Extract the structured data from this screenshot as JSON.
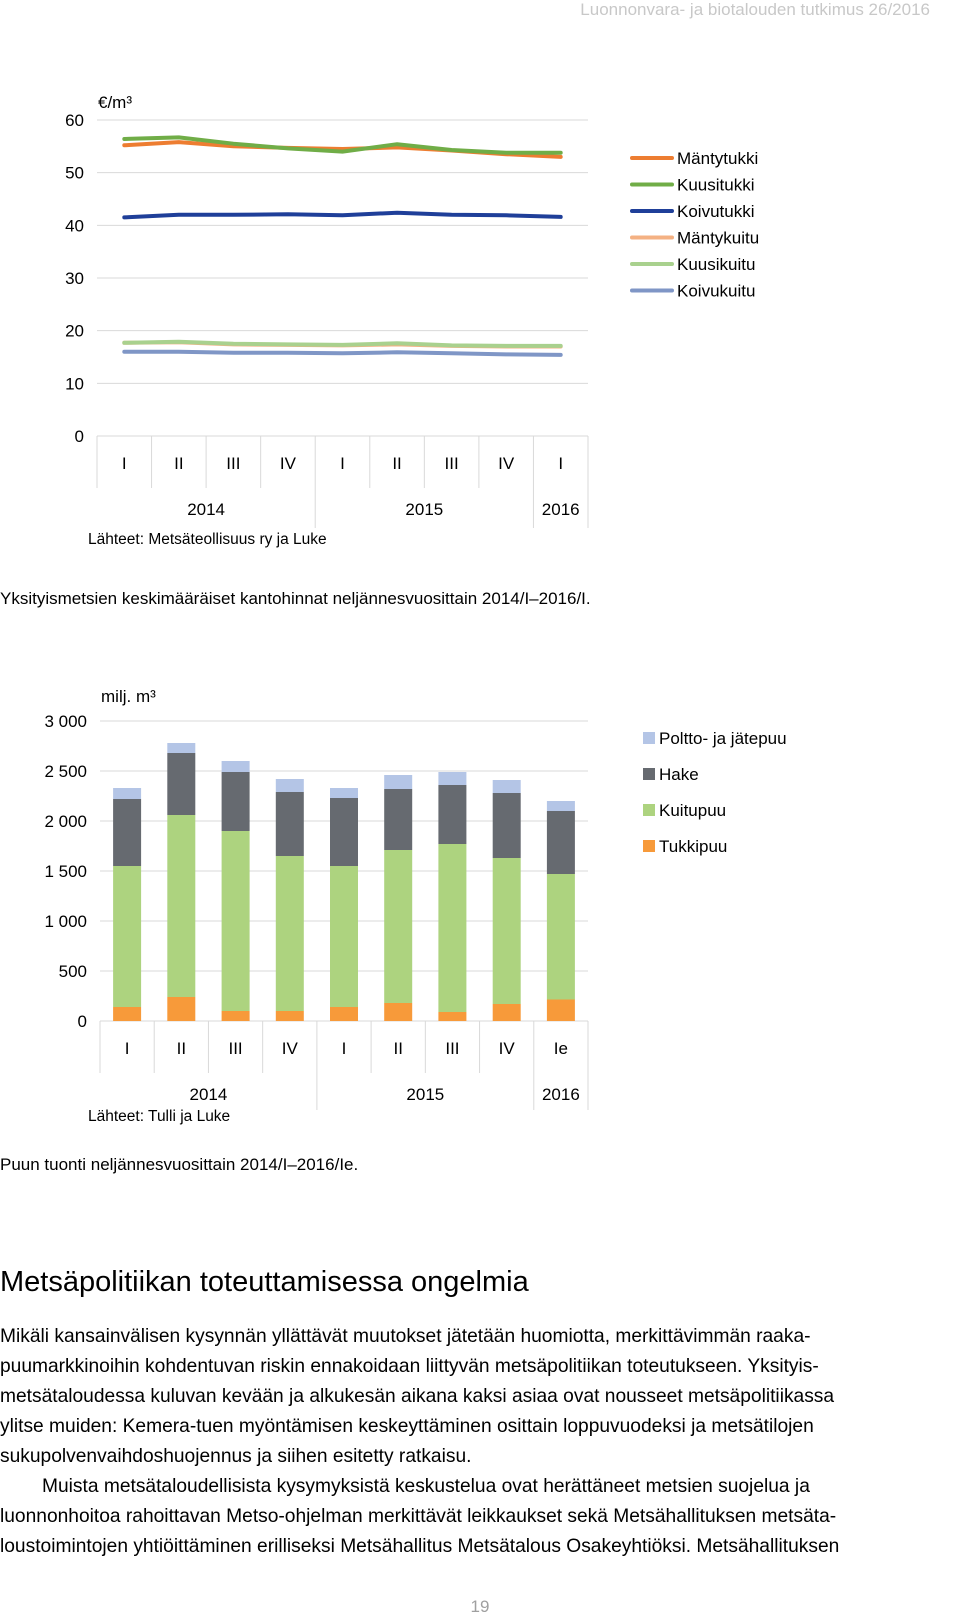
{
  "running_head": "Luonnonvara- ja biotalouden tutkimus 26/2016",
  "figure1": {
    "source": "Lähteet: Metsäteollisuus ry ja Luke",
    "caption": "Yksityismetsien keskimääräiset kantohinnat neljännesvuosittain 2014/I–2016/I."
  },
  "figure2": {
    "source": "Lähteet: Tulli ja Luke",
    "caption": "Puun tuonti neljännesvuosittain 2014/I–2016/Ie."
  },
  "section": {
    "heading": "Metsäpolitiikan toteuttamisessa ongelmia",
    "p1_lines": [
      "Mikäli kansainvälisen kysynnän yllättävät muutokset jätetään huomiotta, merkittävimmän raaka-",
      "puumarkkinoihin kohdentuvan riskin ennakoidaan liittyvän metsäpolitiikan toteutukseen. Yksityis-",
      "metsätaloudessa kuluvan kevään ja alkukesän aikana kaksi asiaa ovat nousseet metsäpolitiikassa",
      "ylitse muiden: Kemera-tuen myöntämisen keskeyttäminen osittain loppuvuodeksi ja metsätilojen",
      "sukupolvenvaihdoshuojennus ja siihen esitetty ratkaisu."
    ],
    "p2_lines": [
      "Muista metsätaloudellisista kysymyksistä keskustelua ovat herättäneet metsien suojelua ja",
      "luonnonhoitoa rahoittavan Metso-ohjelman merkittävät leikkaukset sekä Metsähallituksen metsäta-",
      "loustoimintojen yhtiöittäminen erilliseksi Metsähallitus Metsätalous Osakeyhtiöksi. Metsähallituksen"
    ]
  },
  "page_number": "19",
  "chart_data": [
    {
      "type": "line",
      "unit": "€/m³",
      "categories": [
        "I",
        "II",
        "III",
        "IV",
        "I",
        "II",
        "III",
        "IV",
        "I"
      ],
      "years": [
        {
          "label": "2014",
          "span": 4
        },
        {
          "label": "2015",
          "span": 4
        },
        {
          "label": "2016",
          "span": 1
        }
      ],
      "ylim": [
        0,
        60
      ],
      "yticks": [
        0,
        10,
        20,
        30,
        40,
        50,
        60
      ],
      "grid": true,
      "legend_position": "right",
      "series": [
        {
          "name": "Mäntytukki",
          "color": "#ED7D31",
          "values": [
            55.2,
            55.8,
            55.0,
            54.7,
            54.5,
            54.8,
            54.2,
            53.5,
            53.0
          ]
        },
        {
          "name": "Kuusitukki",
          "color": "#70AD47",
          "values": [
            56.4,
            56.7,
            55.5,
            54.6,
            54.0,
            55.4,
            54.3,
            53.8,
            53.8
          ]
        },
        {
          "name": "Koivutukki",
          "color": "#1F3F99",
          "values": [
            41.5,
            42.0,
            42.0,
            42.1,
            41.9,
            42.4,
            42.0,
            41.9,
            41.6
          ]
        },
        {
          "name": "Mäntykuitu",
          "color": "#F4B183",
          "values": [
            17.7,
            17.8,
            17.4,
            17.3,
            17.2,
            17.4,
            17.1,
            17.0,
            17.0
          ]
        },
        {
          "name": "Kuusikuitu",
          "color": "#A9D18E",
          "values": [
            17.7,
            17.9,
            17.5,
            17.4,
            17.3,
            17.6,
            17.2,
            17.1,
            17.1
          ]
        },
        {
          "name": "Koivukuitu",
          "color": "#7F96C6",
          "values": [
            16.0,
            16.0,
            15.8,
            15.8,
            15.7,
            15.9,
            15.7,
            15.5,
            15.4
          ]
        }
      ]
    },
    {
      "type": "bar",
      "stacked": true,
      "unit": "milj. m³",
      "categories": [
        "I",
        "II",
        "III",
        "IV",
        "I",
        "II",
        "III",
        "IV",
        "Ie"
      ],
      "years": [
        {
          "label": "2014",
          "span": 4
        },
        {
          "label": "2015",
          "span": 4
        },
        {
          "label": "2016",
          "span": 1
        }
      ],
      "ylim": [
        0,
        3000
      ],
      "yticks": [
        0,
        500,
        1000,
        1500,
        2000,
        2500,
        3000
      ],
      "ytick_labels": [
        "0",
        "500",
        "1 000",
        "1 500",
        "2 000",
        "2 500",
        "3 000"
      ],
      "grid": true,
      "legend_position": "right",
      "series": [
        {
          "name": "Tukkipuu",
          "color": "#F79A3A",
          "values": [
            140,
            240,
            100,
            100,
            140,
            180,
            90,
            170,
            215
          ]
        },
        {
          "name": "Kuitupuu",
          "color": "#ADD37F",
          "values": [
            1410,
            1820,
            1800,
            1550,
            1410,
            1530,
            1680,
            1460,
            1255
          ]
        },
        {
          "name": "Hake",
          "color": "#666A70",
          "values": [
            670,
            620,
            590,
            640,
            680,
            610,
            590,
            650,
            630
          ]
        },
        {
          "name": "Poltto- ja jätepuu",
          "color": "#B4C5E6",
          "values": [
            110,
            100,
            110,
            130,
            100,
            140,
            130,
            130,
            100
          ]
        }
      ],
      "legend_order": [
        "Poltto- ja jätepuu",
        "Hake",
        "Kuitupuu",
        "Tukkipuu"
      ]
    }
  ]
}
